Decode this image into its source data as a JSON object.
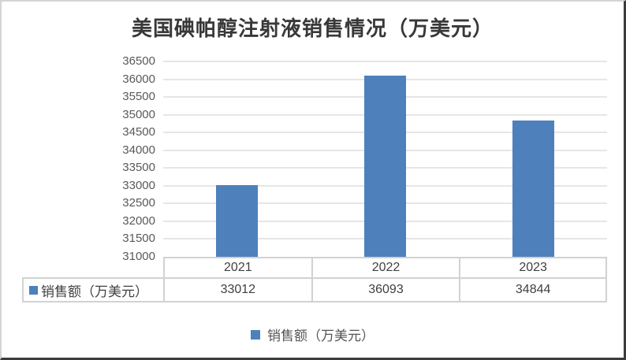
{
  "chart_data": {
    "type": "bar",
    "title": "美国碘帕醇注射液销售情况（万美元）",
    "categories": [
      "2021",
      "2022",
      "2023"
    ],
    "series": [
      {
        "name": "销售额（万美元）",
        "values": [
          33012,
          36093,
          34844
        ],
        "color": "#4e80bc"
      }
    ],
    "xlabel": "",
    "ylabel": "",
    "ylim": [
      31000,
      36500
    ],
    "ytick_step": 500,
    "ytick_labels": [
      "36500",
      "36000",
      "35500",
      "35000",
      "34500",
      "34000",
      "33500",
      "33000",
      "32500",
      "32000",
      "31500",
      "31000"
    ],
    "grid": true,
    "legend_position": "bottom",
    "show_data_table": true
  },
  "table": {
    "row_header": "销售额（万美元）",
    "column_headers": [
      "2021",
      "2022",
      "2023"
    ],
    "values": [
      "33012",
      "36093",
      "34844"
    ]
  },
  "legend": {
    "label": "销售额（万美元）"
  },
  "colors": {
    "bar": "#4e80bc",
    "axis_text": "#595959",
    "table_text": "#404040",
    "gridline": "#e6e6e6",
    "table_border": "#d2d2d2"
  }
}
